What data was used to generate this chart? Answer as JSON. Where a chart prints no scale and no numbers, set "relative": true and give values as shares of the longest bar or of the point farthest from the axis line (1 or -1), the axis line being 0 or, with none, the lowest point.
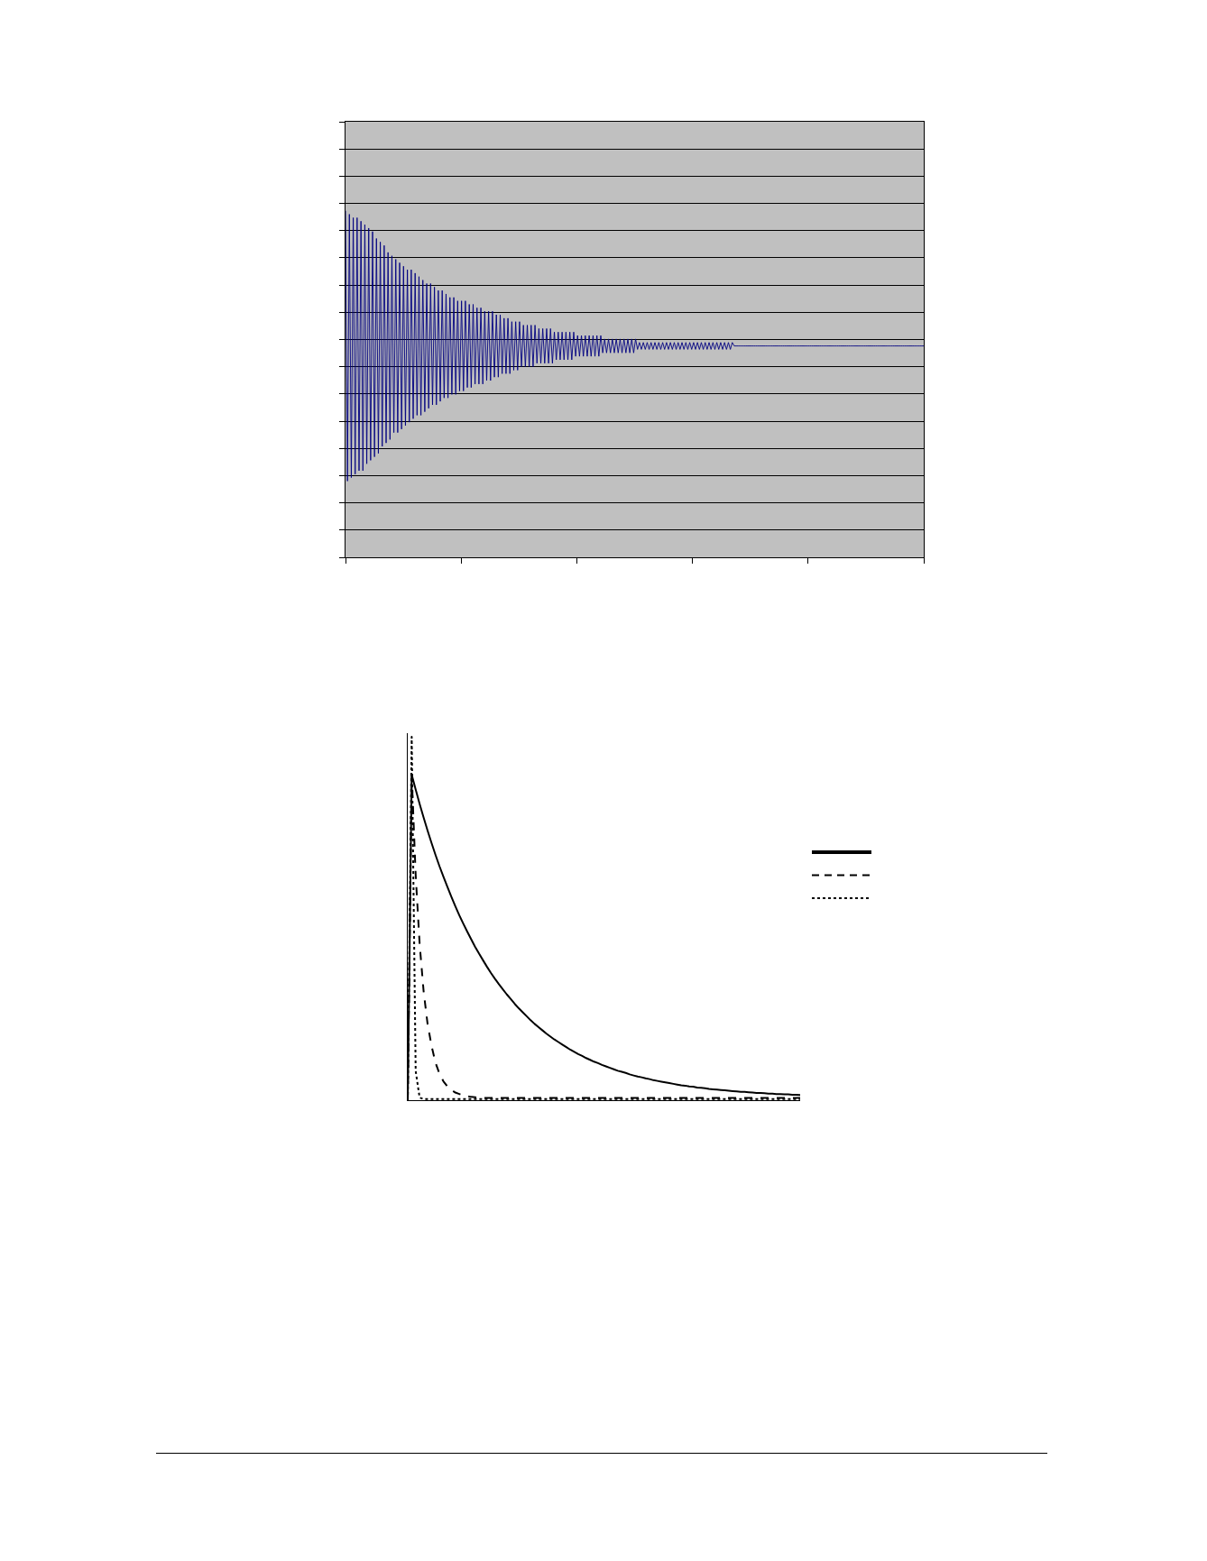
{
  "chart_data": [
    {
      "type": "line",
      "relative": true,
      "grid": "y",
      "categories": [
        null,
        null,
        null,
        null,
        null,
        null,
        null,
        null,
        null,
        null,
        null,
        null,
        null,
        null,
        null,
        null,
        null,
        null,
        null,
        null,
        null,
        null,
        null,
        null,
        null,
        null,
        null,
        null,
        null,
        null,
        null,
        null,
        null,
        null,
        null,
        null,
        null,
        null,
        null,
        null,
        null,
        null,
        null,
        null,
        null,
        null,
        null,
        null,
        null,
        null,
        null,
        null,
        null,
        null,
        null,
        null,
        null,
        null,
        null,
        null,
        null,
        null,
        null,
        null,
        null,
        null,
        null,
        null,
        null,
        null,
        null,
        null,
        null,
        null,
        null,
        null,
        null,
        null,
        null,
        null,
        null,
        null,
        null,
        null,
        null,
        null,
        null,
        null,
        null,
        null,
        null,
        null,
        null,
        null,
        null,
        null,
        null,
        null,
        null,
        null,
        null,
        null,
        null,
        null,
        null,
        null,
        null,
        null,
        null,
        null,
        null,
        null,
        null,
        null,
        null,
        null,
        null,
        null,
        null,
        null,
        null,
        null,
        null,
        null,
        null,
        null,
        null,
        null,
        null,
        null,
        null,
        null,
        null,
        null,
        null,
        null,
        null,
        null,
        null,
        null,
        null,
        null,
        null,
        null,
        null,
        null,
        null,
        null,
        null,
        null,
        null,
        null,
        null,
        null,
        null,
        null,
        null,
        null,
        null,
        null,
        null,
        null,
        null,
        null,
        null,
        null,
        null,
        null,
        null,
        null,
        null,
        null,
        null,
        null,
        null,
        null,
        null,
        null,
        null,
        null,
        null,
        null,
        null,
        null,
        null,
        null,
        null,
        null,
        null,
        null,
        null,
        null,
        null,
        null,
        null,
        null,
        null,
        null,
        null,
        null,
        null,
        null,
        null,
        null,
        null,
        null,
        null,
        null,
        null,
        null,
        null,
        null,
        null,
        null,
        null,
        null,
        null,
        null,
        null,
        null,
        null,
        null,
        null,
        null,
        null,
        null,
        null,
        null,
        null,
        null,
        null,
        null,
        null,
        null,
        null,
        null,
        null,
        null,
        null,
        null,
        null,
        null,
        null,
        null,
        null,
        null,
        null,
        null,
        null,
        null,
        null,
        null,
        null,
        null,
        null,
        null,
        null,
        null,
        null,
        null,
        null,
        null,
        null,
        null,
        null,
        null,
        null,
        null,
        null,
        null,
        null,
        null,
        null,
        null,
        null,
        null,
        null,
        null,
        null,
        null,
        null,
        null,
        null,
        null,
        null,
        null,
        null,
        null,
        null,
        null,
        null,
        null,
        null,
        null,
        null,
        null,
        null,
        null,
        null,
        null
      ],
      "series": [
        {
          "color": "#000080",
          "values": [
            1,
            0.22,
            0.99,
            0.23,
            0.98,
            0.24,
            0.98,
            0.25,
            0.97,
            0.25,
            0.96,
            0.27,
            0.95,
            0.28,
            0.94,
            0.29,
            0.92,
            0.3,
            0.91,
            0.32,
            0.9,
            0.33,
            0.88,
            0.34,
            0.87,
            0.36,
            0.86,
            0.36,
            0.85,
            0.37,
            0.84,
            0.38,
            0.83,
            0.39,
            0.83,
            0.4,
            0.82,
            0.41,
            0.81,
            0.41,
            0.8,
            0.42,
            0.79,
            0.43,
            0.79,
            0.44,
            0.78,
            0.44,
            0.77,
            0.45,
            0.77,
            0.46,
            0.76,
            0.46,
            0.75,
            0.47,
            0.75,
            0.47,
            0.74,
            0.48,
            0.74,
            0.48,
            0.74,
            0.49,
            0.73,
            0.49,
            0.73,
            0.5,
            0.72,
            0.5,
            0.72,
            0.5,
            0.71,
            0.51,
            0.71,
            0.51,
            0.71,
            0.52,
            0.7,
            0.52,
            0.7,
            0.53,
            0.69,
            0.53,
            0.69,
            0.53,
            0.68,
            0.54,
            0.68,
            0.54,
            0.68,
            0.55,
            0.67,
            0.55,
            0.67,
            0.55,
            0.67,
            0.55,
            0.67,
            0.56,
            0.66,
            0.56,
            0.66,
            0.56,
            0.66,
            0.56,
            0.66,
            0.56,
            0.65,
            0.57,
            0.65,
            0.57,
            0.65,
            0.57,
            0.65,
            0.57,
            0.65,
            0.57,
            0.65,
            0.58,
            0.64,
            0.58,
            0.64,
            0.58,
            0.64,
            0.58,
            0.64,
            0.58,
            0.64,
            0.58,
            0.64,
            0.58,
            0.64,
            0.59,
            0.63,
            0.59,
            0.63,
            0.59,
            0.63,
            0.59,
            0.63,
            0.59,
            0.63,
            0.59,
            0.63,
            0.59,
            0.63,
            0.59,
            0.63,
            0.59,
            0.63,
            0.6,
            0.62,
            0.6,
            0.62,
            0.6,
            0.62,
            0.6,
            0.62,
            0.6,
            0.62,
            0.6,
            0.62,
            0.6,
            0.62,
            0.6,
            0.62,
            0.6,
            0.62,
            0.6,
            0.62,
            0.6,
            0.62,
            0.6,
            0.62,
            0.6,
            0.62,
            0.6,
            0.62,
            0.6,
            0.62,
            0.6,
            0.62,
            0.6,
            0.62,
            0.6,
            0.62,
            0.6,
            0.62,
            0.6,
            0.62,
            0.6,
            0.62,
            0.6,
            0.62,
            0.6,
            0.62,
            0.6,
            0.62,
            0.6,
            0.62,
            0.61,
            0.61,
            0.61,
            0.61,
            0.61,
            0.61,
            0.61,
            0.61,
            0.61,
            0.61,
            0.61,
            0.61,
            0.61,
            0.61,
            0.61,
            0.61,
            0.61,
            0.61,
            0.61,
            0.61,
            0.61,
            0.61,
            0.61,
            0.61,
            0.61,
            0.61,
            0.61,
            0.61,
            0.61,
            0.61,
            0.61,
            0.61,
            0.61,
            0.61,
            0.61,
            0.61,
            0.61,
            0.61,
            0.61,
            0.61,
            0.61,
            0.61,
            0.61,
            0.61,
            0.61,
            0.61,
            0.61,
            0.61,
            0.61,
            0.61,
            0.61,
            0.61,
            0.61,
            0.61,
            0.61,
            0.61,
            0.61,
            0.61,
            0.61,
            0.61,
            0.61,
            0.61,
            0.61,
            0.61,
            0.61,
            0.61,
            0.61,
            0.61,
            0.61,
            0.61,
            0.61,
            0.61,
            0.61,
            0.61,
            0.61,
            0.61,
            0.61,
            0.61,
            0.61,
            0.61,
            0.61,
            0.61,
            0.61,
            0.61,
            0.61,
            0.61,
            0.61,
            0.61,
            0.61,
            0.61,
            0.61,
            0.61,
            0.61,
            0.61,
            0.61,
            0.61,
            0.61,
            0.61,
            0.61
          ]
        }
      ]
    },
    {
      "type": "line",
      "relative": true,
      "categories": [
        null,
        null,
        null,
        null,
        null,
        null,
        null,
        null,
        null,
        null,
        null,
        null,
        null,
        null,
        null,
        null,
        null,
        null,
        null,
        null,
        null,
        null,
        null,
        null,
        null,
        null,
        null,
        null,
        null,
        null,
        null,
        null,
        null,
        null,
        null,
        null,
        null,
        null,
        null,
        null,
        null,
        null,
        null,
        null,
        null,
        null,
        null,
        null,
        null,
        null,
        null,
        null,
        null,
        null,
        null,
        null,
        null,
        null,
        null,
        null,
        null,
        null,
        null,
        null,
        null,
        null,
        null,
        null,
        null,
        null,
        null,
        null,
        null,
        null,
        null,
        null,
        null,
        null,
        null,
        null,
        null,
        null,
        null,
        null,
        null,
        null,
        null,
        null,
        null,
        null,
        null,
        null,
        null,
        null,
        null,
        null,
        null,
        null,
        null,
        null
      ],
      "series": [
        {
          "color": "#000000",
          "line_style": "solid",
          "values": [
            0,
            0.896,
            0.855,
            0.815,
            0.778,
            0.742,
            0.708,
            0.675,
            0.644,
            0.615,
            0.587,
            0.56,
            0.534,
            0.509,
            0.486,
            0.464,
            0.443,
            0.422,
            0.403,
            0.385,
            0.367,
            0.35,
            0.334,
            0.319,
            0.305,
            0.291,
            0.278,
            0.265,
            0.253,
            0.242,
            0.231,
            0.22,
            0.21,
            0.201,
            0.192,
            0.183,
            0.175,
            0.167,
            0.16,
            0.153,
            0.146,
            0.139,
            0.133,
            0.127,
            0.122,
            0.116,
            0.111,
            0.106,
            0.102,
            0.097,
            0.093,
            0.089,
            0.085,
            0.081,
            0.078,
            0.075,
            0.071,
            0.068,
            0.065,
            0.063,
            0.06,
            0.058,
            0.055,
            0.053,
            0.051,
            0.049,
            0.047,
            0.045,
            0.043,
            0.041,
            0.04,
            0.038,
            0.037,
            0.035,
            0.034,
            0.033,
            0.031,
            0.03,
            0.029,
            0.028,
            0.027,
            0.026,
            0.025,
            0.024,
            0.023,
            0.023,
            0.022,
            0.021,
            0.02,
            0.02,
            0.019,
            0.018,
            0.018,
            0.017,
            0.017,
            0.016,
            0.016,
            0.015,
            0.015,
            0.014
          ]
        },
        {
          "color": "#000000",
          "line_style": "dashed",
          "values": [
            0,
            0.896,
            0.62,
            0.43,
            0.3,
            0.21,
            0.15,
            0.103,
            0.073,
            0.052,
            0.038,
            0.028,
            0.021,
            0.017,
            0.013,
            0.011,
            0.009,
            0.008,
            0.007,
            0.006,
            0.006,
            0.006,
            0.006,
            0.006,
            0.006,
            0.006,
            0.006,
            0.006,
            0.006,
            0.006,
            0.006,
            0.006,
            0.006,
            0.006,
            0.006,
            0.006,
            0.006,
            0.006,
            0.006,
            0.006,
            0.006,
            0.006,
            0.006,
            0.006,
            0.006,
            0.006,
            0.006,
            0.006,
            0.006,
            0.006,
            0.006,
            0.006,
            0.006,
            0.006,
            0.006,
            0.006,
            0.006,
            0.006,
            0.006,
            0.006,
            0.006,
            0.006,
            0.006,
            0.006,
            0.006,
            0.006,
            0.006,
            0.006,
            0.006,
            0.006,
            0.006,
            0.006,
            0.006,
            0.006,
            0.006,
            0.006,
            0.006,
            0.006,
            0.006,
            0.006,
            0.006,
            0.006,
            0.006,
            0.006,
            0.006,
            0.006,
            0.006,
            0.006,
            0.006,
            0.006,
            0.006,
            0.006,
            0.006,
            0.006,
            0.006,
            0.006,
            0.006,
            0.006,
            0.006,
            0.006
          ]
        },
        {
          "color": "#000000",
          "line_style": "dotted",
          "values": [
            0,
            1,
            0.08,
            0.007,
            0.003,
            0.003,
            0.003,
            0.003,
            0.003,
            0.003,
            0.003,
            0.003,
            0.003,
            0.003,
            0.003,
            0.003,
            0.003,
            0.003,
            0.003,
            0.003,
            0.003,
            0.003,
            0.003,
            0.003,
            0.003,
            0.003,
            0.003,
            0.003,
            0.003,
            0.003,
            0.003,
            0.003,
            0.003,
            0.003,
            0.003,
            0.003,
            0.003,
            0.003,
            0.003,
            0.003,
            0.003,
            0.003,
            0.003,
            0.003,
            0.003,
            0.003,
            0.003,
            0.003,
            0.003,
            0.003,
            0.003,
            0.003,
            0.003,
            0.003,
            0.003,
            0.003,
            0.003,
            0.003,
            0.003,
            0.003,
            0.003,
            0.003,
            0.003,
            0.003,
            0.003,
            0.003,
            0.003,
            0.003,
            0.003,
            0.003,
            0.003,
            0.003,
            0.003,
            0.003,
            0.003,
            0.003,
            0.003,
            0.003,
            0.003,
            0.003,
            0.003,
            0.003,
            0.003,
            0.003,
            0.003,
            0.003,
            0.003,
            0.003,
            0.003,
            0.003,
            0.003,
            0.003,
            0.003,
            0.003,
            0.003,
            0.003,
            0.003,
            0.003,
            0.003,
            0.003
          ]
        }
      ]
    }
  ]
}
